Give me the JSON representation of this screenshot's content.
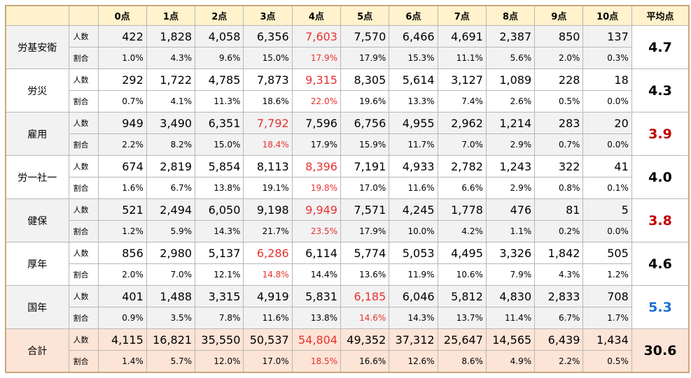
{
  "header": {
    "columns": [
      "0点",
      "1点",
      "2点",
      "3点",
      "4点",
      "5点",
      "6点",
      "7点",
      "8点",
      "9点",
      "10点"
    ],
    "average": "平均点"
  },
  "highlight_color": "#e8312f",
  "groups": [
    {
      "name": "労基安衛",
      "average": "4.7",
      "average_color": "#000000",
      "rows": [
        {
          "label": "人数",
          "cells": [
            "422",
            "1,828",
            "4,058",
            "6,356",
            "7,603",
            "7,570",
            "6,466",
            "4,691",
            "2,387",
            "850",
            "137"
          ]
        },
        {
          "label": "割合",
          "cells": [
            "1.0%",
            "4.3%",
            "9.6%",
            "15.0%",
            "17.9%",
            "17.9%",
            "15.3%",
            "11.1%",
            "5.6%",
            "2.0%",
            "0.3%"
          ]
        }
      ]
    },
    {
      "name": "労災",
      "average": "4.3",
      "average_color": "#000000",
      "rows": [
        {
          "label": "人数",
          "cells": [
            "292",
            "1,722",
            "4,785",
            "7,873",
            "9,315",
            "8,305",
            "5,614",
            "3,127",
            "1,089",
            "228",
            "18"
          ]
        },
        {
          "label": "割合",
          "cells": [
            "0.7%",
            "4.1%",
            "11.3%",
            "18.6%",
            "22.0%",
            "19.6%",
            "13.3%",
            "7.4%",
            "2.6%",
            "0.5%",
            "0.0%"
          ]
        }
      ]
    },
    {
      "name": "雇用",
      "average": "3.9",
      "average_color": "#c00000",
      "rows": [
        {
          "label": "人数",
          "cells": [
            "949",
            "3,490",
            "6,351",
            "7,792",
            "7,596",
            "6,756",
            "4,955",
            "2,962",
            "1,214",
            "283",
            "20"
          ]
        },
        {
          "label": "割合",
          "cells": [
            "2.2%",
            "8.2%",
            "15.0%",
            "18.4%",
            "17.9%",
            "15.9%",
            "11.7%",
            "7.0%",
            "2.9%",
            "0.7%",
            "0.0%"
          ]
        }
      ]
    },
    {
      "name": "労一社一",
      "average": "4.0",
      "average_color": "#000000",
      "rows": [
        {
          "label": "人数",
          "cells": [
            "674",
            "2,819",
            "5,854",
            "8,113",
            "8,396",
            "7,191",
            "4,933",
            "2,782",
            "1,243",
            "322",
            "41"
          ]
        },
        {
          "label": "割合",
          "cells": [
            "1.6%",
            "6.7%",
            "13.8%",
            "19.1%",
            "19.8%",
            "17.0%",
            "11.6%",
            "6.6%",
            "2.9%",
            "0.8%",
            "0.1%"
          ]
        }
      ]
    },
    {
      "name": "健保",
      "average": "3.8",
      "average_color": "#c00000",
      "rows": [
        {
          "label": "人数",
          "cells": [
            "521",
            "2,494",
            "6,050",
            "9,198",
            "9,949",
            "7,571",
            "4,245",
            "1,778",
            "476",
            "81",
            "5"
          ]
        },
        {
          "label": "割合",
          "cells": [
            "1.2%",
            "5.9%",
            "14.3%",
            "21.7%",
            "23.5%",
            "17.9%",
            "10.0%",
            "4.2%",
            "1.1%",
            "0.2%",
            "0.0%"
          ]
        }
      ]
    },
    {
      "name": "厚年",
      "average": "4.6",
      "average_color": "#000000",
      "rows": [
        {
          "label": "人数",
          "cells": [
            "856",
            "2,980",
            "5,137",
            "6,286",
            "6,114",
            "5,774",
            "5,053",
            "4,495",
            "3,326",
            "1,842",
            "505"
          ]
        },
        {
          "label": "割合",
          "cells": [
            "2.0%",
            "7.0%",
            "12.1%",
            "14.8%",
            "14.4%",
            "13.6%",
            "11.9%",
            "10.6%",
            "7.9%",
            "4.3%",
            "1.2%"
          ]
        }
      ]
    },
    {
      "name": "国年",
      "average": "5.3",
      "average_color": "#1f6fd6",
      "rows": [
        {
          "label": "人数",
          "cells": [
            "401",
            "1,488",
            "3,315",
            "4,919",
            "5,831",
            "6,185",
            "6,046",
            "5,812",
            "4,830",
            "2,833",
            "708"
          ]
        },
        {
          "label": "割合",
          "cells": [
            "0.9%",
            "3.5%",
            "7.8%",
            "11.6%",
            "13.8%",
            "14.6%",
            "14.3%",
            "13.7%",
            "11.4%",
            "6.7%",
            "1.7%"
          ]
        }
      ]
    },
    {
      "name": "合計",
      "average": "30.6",
      "average_color": "#000000",
      "rows": [
        {
          "label": "人数",
          "cells": [
            "4,115",
            "16,821",
            "35,550",
            "50,537",
            "54,804",
            "49,352",
            "37,312",
            "25,647",
            "14,565",
            "6,439",
            "1,434"
          ]
        },
        {
          "label": "割合",
          "cells": [
            "1.4%",
            "5.7%",
            "12.0%",
            "17.0%",
            "18.5%",
            "16.6%",
            "12.6%",
            "8.6%",
            "4.9%",
            "2.2%",
            "0.5%"
          ]
        }
      ]
    }
  ]
}
